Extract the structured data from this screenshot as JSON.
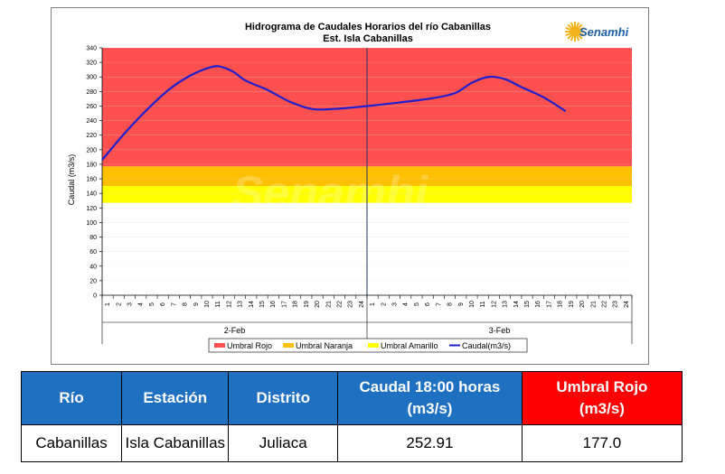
{
  "chart_data": {
    "type": "line",
    "title": "Hidrograma de Caudales Horarios del río Cabanillas",
    "subtitle": "Est. Isla Cabanillas",
    "ylabel": "Caudal  (m3/s)",
    "ylim": [
      0,
      340
    ],
    "yticks": [
      0,
      20,
      40,
      60,
      80,
      100,
      120,
      140,
      160,
      180,
      200,
      220,
      240,
      260,
      280,
      300,
      320,
      340
    ],
    "xticks": [
      "1",
      "2",
      "3",
      "4",
      "5",
      "6",
      "7",
      "8",
      "9",
      "10",
      "11",
      "12",
      "13",
      "14",
      "15",
      "16",
      "17",
      "18",
      "19",
      "20",
      "21",
      "22",
      "23",
      "24",
      "1",
      "2",
      "3",
      "4",
      "5",
      "6",
      "7",
      "8",
      "9",
      "10",
      "11",
      "12",
      "13",
      "14",
      "15",
      "16",
      "17",
      "18",
      "19",
      "20",
      "21",
      "22",
      "23",
      "24"
    ],
    "date_groups": [
      {
        "label": "2-Feb",
        "start": 0,
        "end": 24
      },
      {
        "label": "3-Feb",
        "start": 24,
        "end": 48
      }
    ],
    "bands": [
      {
        "name": "Umbral Rojo",
        "from": 177,
        "to": 340,
        "color": "#ff5050"
      },
      {
        "name": "Umbral Naranja",
        "from": 150,
        "to": 177,
        "color": "#ffc000"
      },
      {
        "name": "Umbral Amarillo",
        "from": 127,
        "to": 150,
        "color": "#ffff00"
      }
    ],
    "series": [
      {
        "name": "Caudal(m3/s)",
        "color": "#1f1fcc",
        "x": [
          0,
          2,
          4,
          6,
          8,
          10,
          11,
          12,
          13,
          15,
          17,
          19,
          21,
          24,
          27,
          30,
          32,
          33.5,
          35,
          36.5,
          38,
          40,
          42
        ],
        "values": [
          186,
          222,
          254,
          282,
          302,
          314,
          313,
          306,
          295,
          282,
          266,
          256,
          256,
          260,
          265,
          271,
          278,
          292,
          300,
          297,
          286,
          272,
          252.91
        ]
      }
    ],
    "legend": [
      "Umbral Rojo",
      "Umbral Naranja",
      "Umbral Amarillo",
      "Caudal(m3/s)"
    ],
    "legend_position": "bottom",
    "watermark": "Senamhi"
  },
  "logo": {
    "text": "Senamhi",
    "color": "#1f5fa8"
  },
  "table": {
    "headers": [
      "Río",
      "Estación",
      "Distrito",
      "Caudal  18:00 horas (m3/s)",
      "Umbral Rojo (m3/s)"
    ],
    "header_colors": [
      "#1f70c1",
      "#1f70c1",
      "#1f70c1",
      "#1f70c1",
      "#ff0000"
    ],
    "row": [
      "Cabanillas",
      "Isla Cabanillas",
      "Juliaca",
      "252.91",
      "177.0"
    ]
  }
}
